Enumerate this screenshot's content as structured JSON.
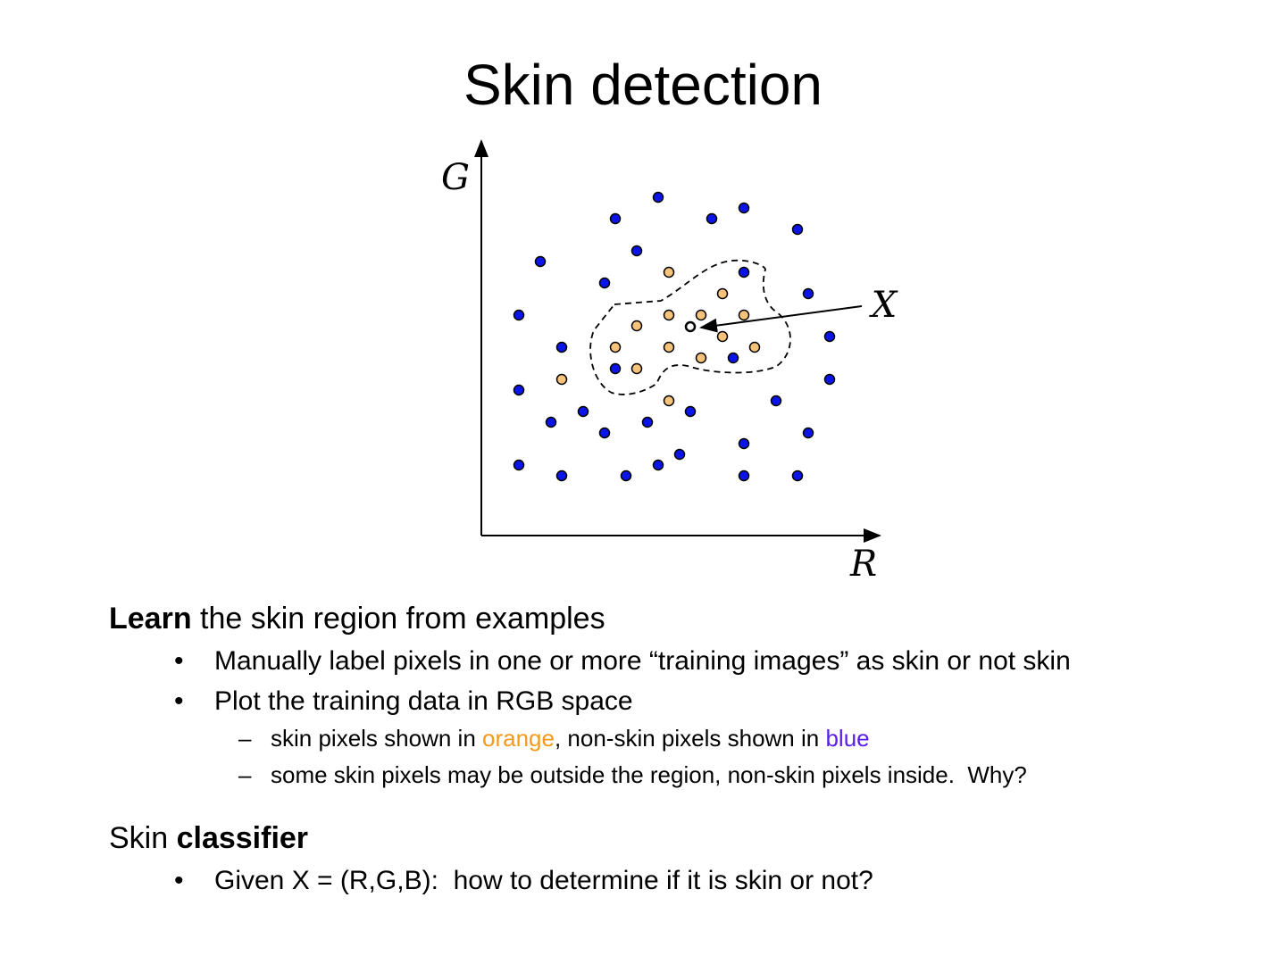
{
  "title": "Skin detection",
  "diagram": {
    "y_label": "G",
    "x_label": "R",
    "point_label": "X"
  },
  "sections": [
    {
      "heading": [
        {
          "text": "Learn",
          "bold": true
        },
        {
          "text": " the skin region from examples"
        }
      ],
      "bullets": [
        {
          "parts": [
            {
              "text": "Manually label pixels in one or more “training images” as skin or not skin"
            }
          ],
          "sub": []
        },
        {
          "parts": [
            {
              "text": "Plot the training data in RGB space"
            }
          ],
          "sub": [
            [
              {
                "text": "skin pixels shown in "
              },
              {
                "text": "orange",
                "color": "#f39a1c"
              },
              {
                "text": ", non-skin pixels shown in "
              },
              {
                "text": "blue",
                "color": "#5a1ee6"
              }
            ],
            [
              {
                "text": "some skin pixels may be outside the region, non-skin pixels inside.  Why?"
              }
            ]
          ]
        }
      ]
    },
    {
      "heading": [
        {
          "text": "Skin "
        },
        {
          "text": "classifier",
          "bold": true
        }
      ],
      "bullets": [
        {
          "parts": [
            {
              "text": "Given X = (R,G,B):  how to determine if it is skin or not?"
            }
          ],
          "sub": []
        }
      ]
    }
  ]
}
